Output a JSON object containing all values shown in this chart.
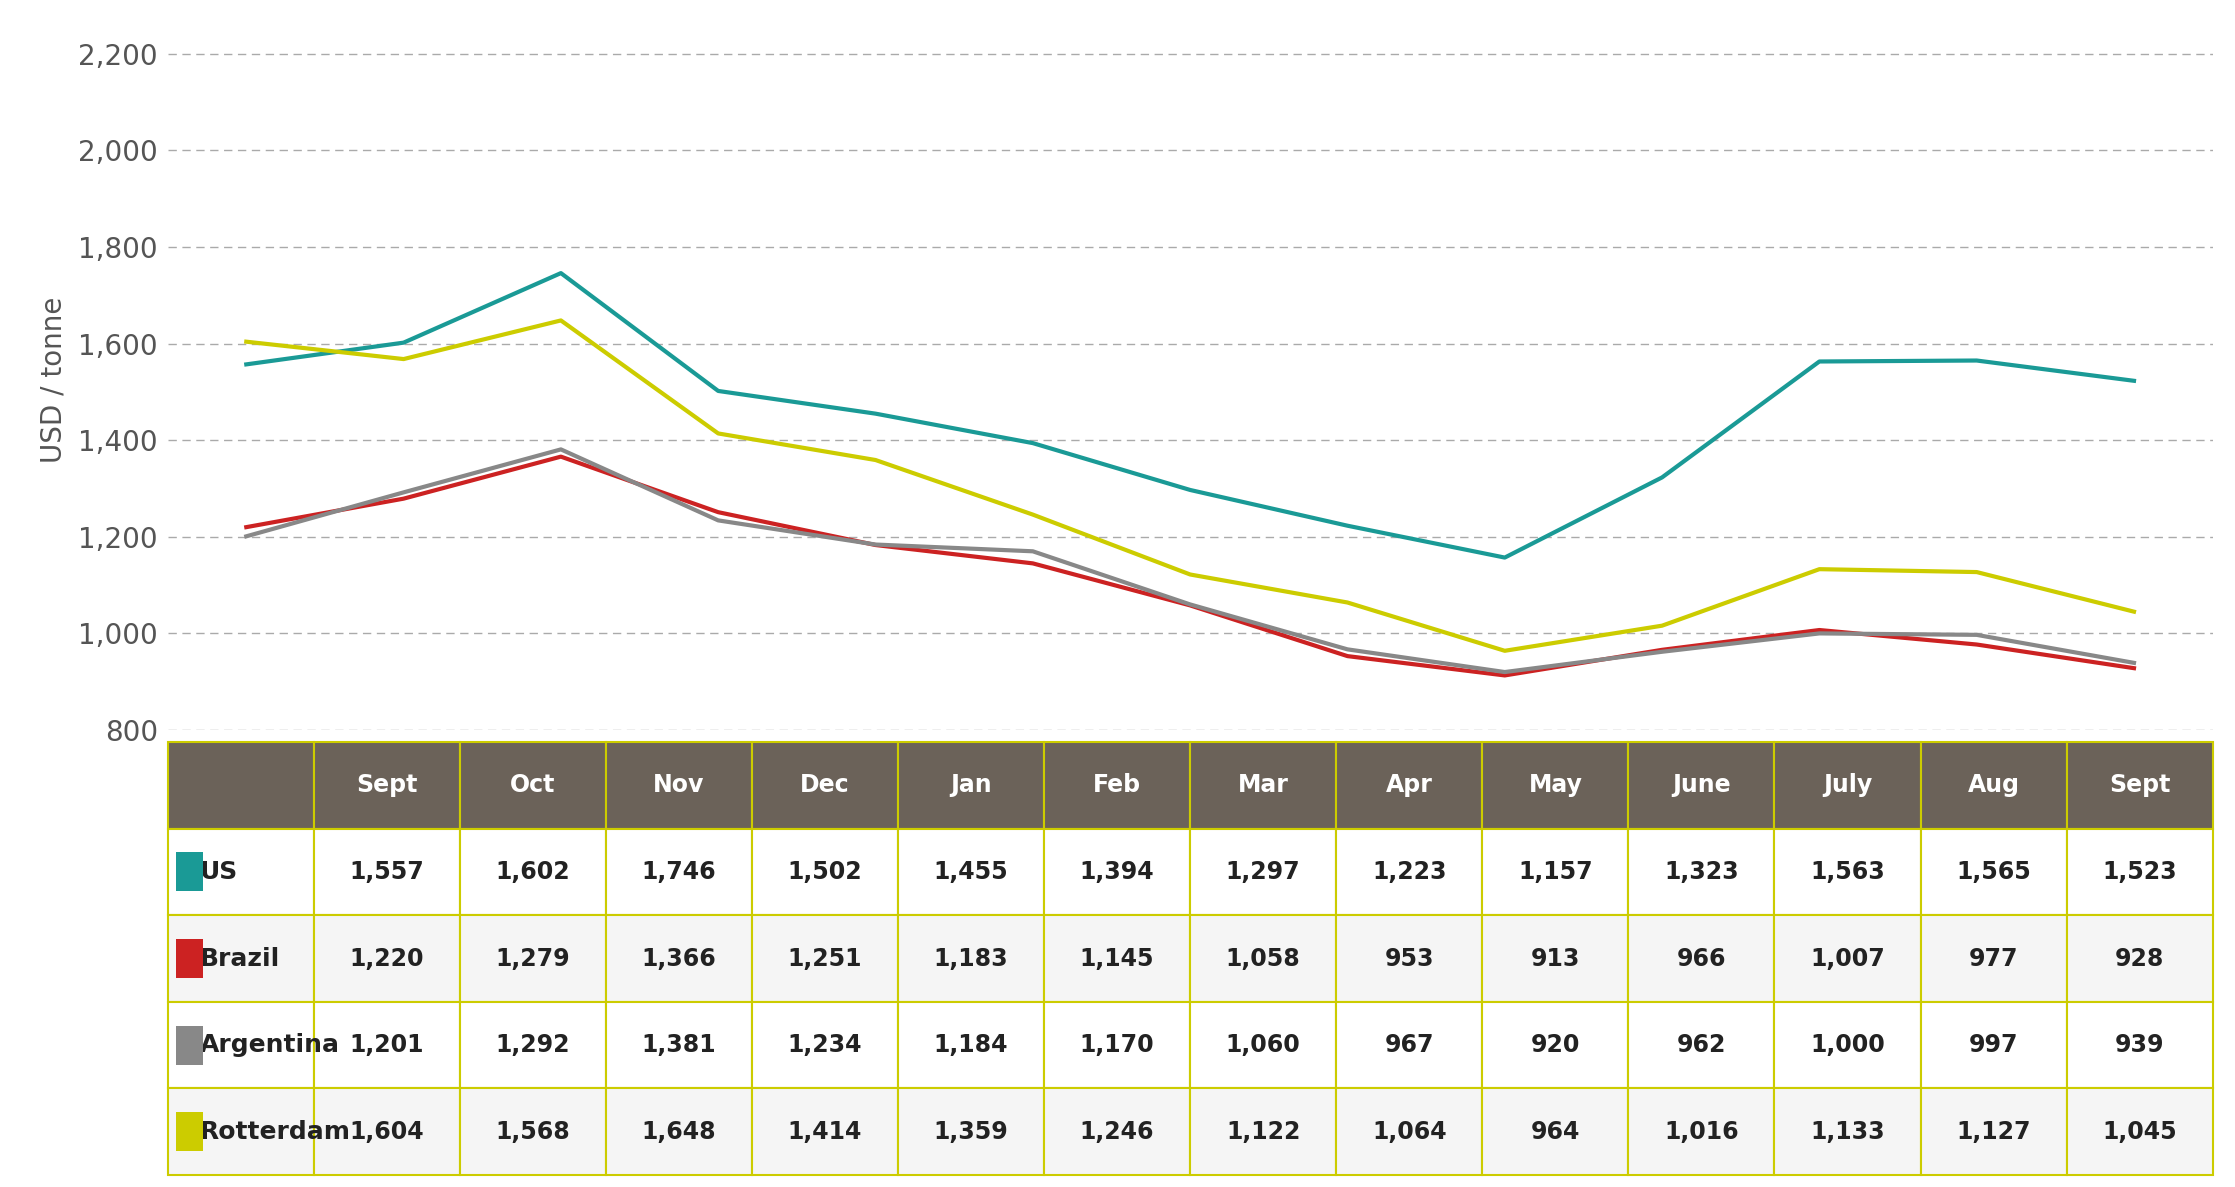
{
  "months": [
    "Sept",
    "Oct",
    "Nov",
    "Dec",
    "Jan",
    "Feb",
    "Mar",
    "Apr",
    "May",
    "June",
    "July",
    "Aug",
    "Sept"
  ],
  "series": {
    "US": {
      "values": [
        1557,
        1602,
        1746,
        1502,
        1455,
        1394,
        1297,
        1223,
        1157,
        1323,
        1563,
        1565,
        1523
      ],
      "color": "#1a9a96",
      "label": "US"
    },
    "Brazil": {
      "values": [
        1220,
        1279,
        1366,
        1251,
        1183,
        1145,
        1058,
        953,
        913,
        966,
        1007,
        977,
        928
      ],
      "color": "#cc2222",
      "label": "Brazil"
    },
    "Argentina": {
      "values": [
        1201,
        1292,
        1381,
        1234,
        1184,
        1170,
        1060,
        967,
        920,
        962,
        1000,
        997,
        939
      ],
      "color": "#888888",
      "label": "Argentina"
    },
    "Rotterdam": {
      "values": [
        1604,
        1568,
        1648,
        1414,
        1359,
        1246,
        1122,
        1064,
        964,
        1016,
        1133,
        1127,
        1045
      ],
      "color": "#cccc00",
      "label": "Rotterdam"
    }
  },
  "series_order": [
    "US",
    "Brazil",
    "Argentina",
    "Rotterdam"
  ],
  "ylabel": "USD / tonne",
  "ylim": [
    800,
    2250
  ],
  "yticks": [
    800,
    1000,
    1200,
    1400,
    1600,
    1800,
    2000,
    2200
  ],
  "ytick_labels": [
    "800",
    "1,000",
    "1,200",
    "1,400",
    "1,600",
    "1,800",
    "2,000",
    "2,200"
  ],
  "background_color": "#ffffff",
  "table_header_bg": "#6b6259",
  "table_header_text": "#ffffff",
  "table_border_color": "#cccc00",
  "table_row_bgs": [
    "#ffffff",
    "#f5f5f5",
    "#ffffff",
    "#f5f5f5"
  ],
  "line_width": 3.0,
  "grid_color": "#aaaaaa",
  "grid_style": "--",
  "tick_color": "#555555",
  "label_color": "#555555",
  "tick_fontsize": 20,
  "ylabel_fontsize": 20,
  "table_header_fontsize": 17,
  "table_label_fontsize": 18,
  "table_value_fontsize": 17
}
